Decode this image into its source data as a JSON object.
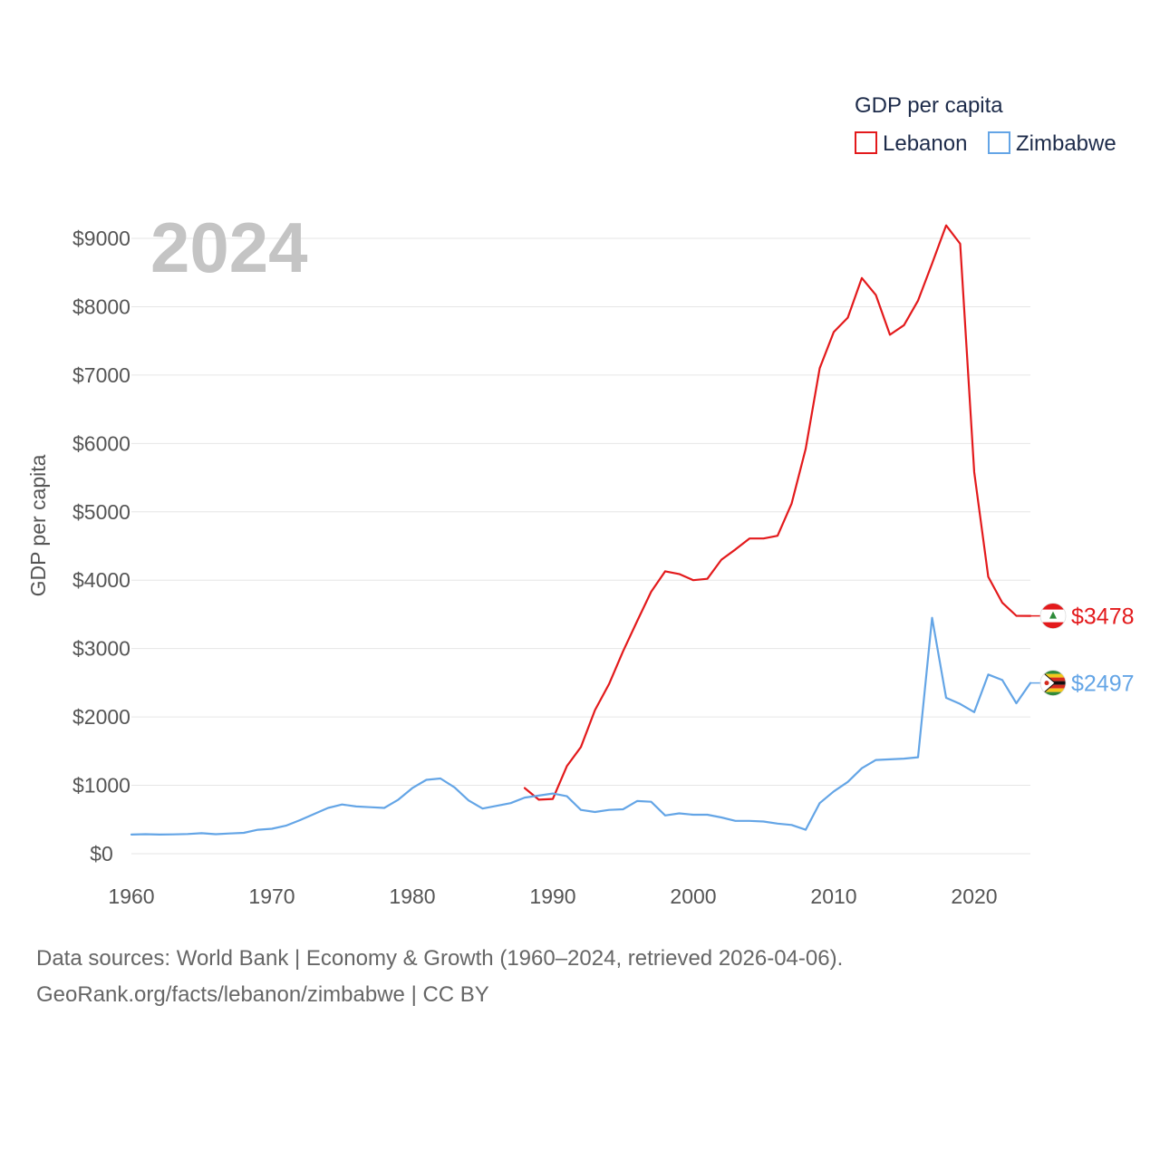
{
  "chart_data": {
    "type": "line",
    "title": "",
    "year_label": "2024",
    "xlabel": "",
    "ylabel": "GDP per capita",
    "xlim": [
      1960,
      2024
    ],
    "ylim": [
      0,
      9000
    ],
    "x_ticks": [
      1960,
      1970,
      1980,
      1990,
      2000,
      2010,
      2020
    ],
    "y_ticks": [
      0,
      1000,
      2000,
      3000,
      4000,
      5000,
      6000,
      7000,
      8000,
      9000
    ],
    "y_tick_labels": [
      "$0",
      "$1000",
      "$2000",
      "$3000",
      "$4000",
      "$5000",
      "$6000",
      "$7000",
      "$8000",
      "$9000"
    ],
    "legend": {
      "title": "GDP per capita",
      "placement": "top-right"
    },
    "series": [
      {
        "name": "Lebanon",
        "color": "#e31a1c",
        "end_label": "$3478",
        "flag_icon": "lebanon-flag-icon",
        "x": [
          1988,
          1989,
          1990,
          1991,
          1992,
          1993,
          1994,
          1995,
          1996,
          1997,
          1998,
          1999,
          2000,
          2001,
          2002,
          2003,
          2004,
          2005,
          2006,
          2007,
          2008,
          2009,
          2010,
          2011,
          2012,
          2013,
          2014,
          2015,
          2016,
          2017,
          2018,
          2019,
          2020,
          2021,
          2022,
          2023,
          2024
        ],
        "values": [
          960,
          790,
          800,
          1280,
          1560,
          2100,
          2480,
          2960,
          3400,
          3830,
          4130,
          4090,
          4000,
          4020,
          4300,
          4450,
          4610,
          4610,
          4650,
          5120,
          5920,
          7100,
          7630,
          7840,
          8420,
          8170,
          7590,
          7730,
          8090,
          8630,
          9190,
          8920,
          5580,
          4050,
          3670,
          3480,
          3478
        ]
      },
      {
        "name": "Zimbabwe",
        "color": "#64a5e6",
        "end_label": "$2497",
        "flag_icon": "zimbabwe-flag-icon",
        "x": [
          1960,
          1961,
          1962,
          1963,
          1964,
          1965,
          1966,
          1967,
          1968,
          1969,
          1970,
          1971,
          1972,
          1973,
          1974,
          1975,
          1976,
          1977,
          1978,
          1979,
          1980,
          1981,
          1982,
          1983,
          1984,
          1985,
          1986,
          1987,
          1988,
          1989,
          1990,
          1991,
          1992,
          1993,
          1994,
          1995,
          1996,
          1997,
          1998,
          1999,
          2000,
          2001,
          2002,
          2003,
          2004,
          2005,
          2006,
          2007,
          2008,
          2009,
          2010,
          2011,
          2012,
          2013,
          2014,
          2015,
          2016,
          2017,
          2018,
          2019,
          2020,
          2021,
          2022,
          2023,
          2024
        ],
        "values": [
          280,
          285,
          280,
          282,
          288,
          300,
          285,
          295,
          305,
          350,
          365,
          410,
          490,
          580,
          670,
          720,
          690,
          680,
          670,
          790,
          960,
          1080,
          1100,
          970,
          780,
          660,
          700,
          740,
          820,
          850,
          880,
          840,
          640,
          610,
          640,
          650,
          770,
          760,
          560,
          590,
          570,
          570,
          530,
          480,
          480,
          470,
          440,
          420,
          350,
          740,
          910,
          1050,
          1250,
          1370,
          1380,
          1390,
          1410,
          3450,
          2280,
          2190,
          2070,
          2620,
          2540,
          2200,
          2497
        ]
      }
    ]
  },
  "footer": {
    "line1": "Data sources: World Bank | Economy & Growth (1960–2024, retrieved 2026-04-06).",
    "line2": "GeoRank.org/facts/lebanon/zimbabwe | CC BY"
  }
}
